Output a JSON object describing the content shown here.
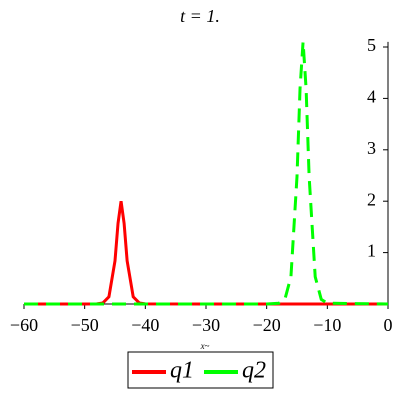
{
  "chart_data": {
    "type": "line",
    "title": "t = 1.",
    "x_label": "x~",
    "x": [
      -60,
      -50,
      -48,
      -47,
      -46,
      -45,
      -44.5,
      -44,
      -43.5,
      -43,
      -42,
      -41,
      -40,
      -30,
      -20,
      -18,
      -17,
      -16,
      -15,
      -14.5,
      -14,
      -13.5,
      -13,
      -12,
      -11,
      -10,
      0
    ],
    "series": [
      {
        "name": "q1",
        "color": "#ff0000",
        "dash": "solid",
        "values": [
          0,
          0,
          0.003,
          0.02,
          0.14,
          0.84,
          1.57,
          2,
          1.57,
          0.84,
          0.14,
          0.02,
          0.003,
          0,
          0,
          0,
          0,
          0,
          0,
          0,
          0,
          0,
          0,
          0,
          0,
          0,
          0
        ]
      },
      {
        "name": "q2",
        "color": "#00ff00",
        "dash": "dashed",
        "values": [
          0,
          0,
          0,
          0,
          0,
          0,
          0,
          0,
          0,
          0,
          0,
          0,
          0,
          0,
          0,
          0.015,
          0.09,
          0.53,
          2.48,
          4.19,
          5.1,
          4.19,
          2.48,
          0.53,
          0.09,
          0.015,
          0
        ]
      }
    ],
    "xlim": [
      -60,
      0
    ],
    "ylim": [
      0,
      5.1
    ],
    "xticks": [
      {
        "value": -60,
        "label": "−60"
      },
      {
        "value": -50,
        "label": "−50"
      },
      {
        "value": -40,
        "label": "−40"
      },
      {
        "value": -30,
        "label": "−30"
      },
      {
        "value": -20,
        "label": "−20"
      },
      {
        "value": -10,
        "label": "−10"
      },
      0
    ],
    "yticks": [
      1,
      2,
      3,
      4,
      5
    ]
  }
}
